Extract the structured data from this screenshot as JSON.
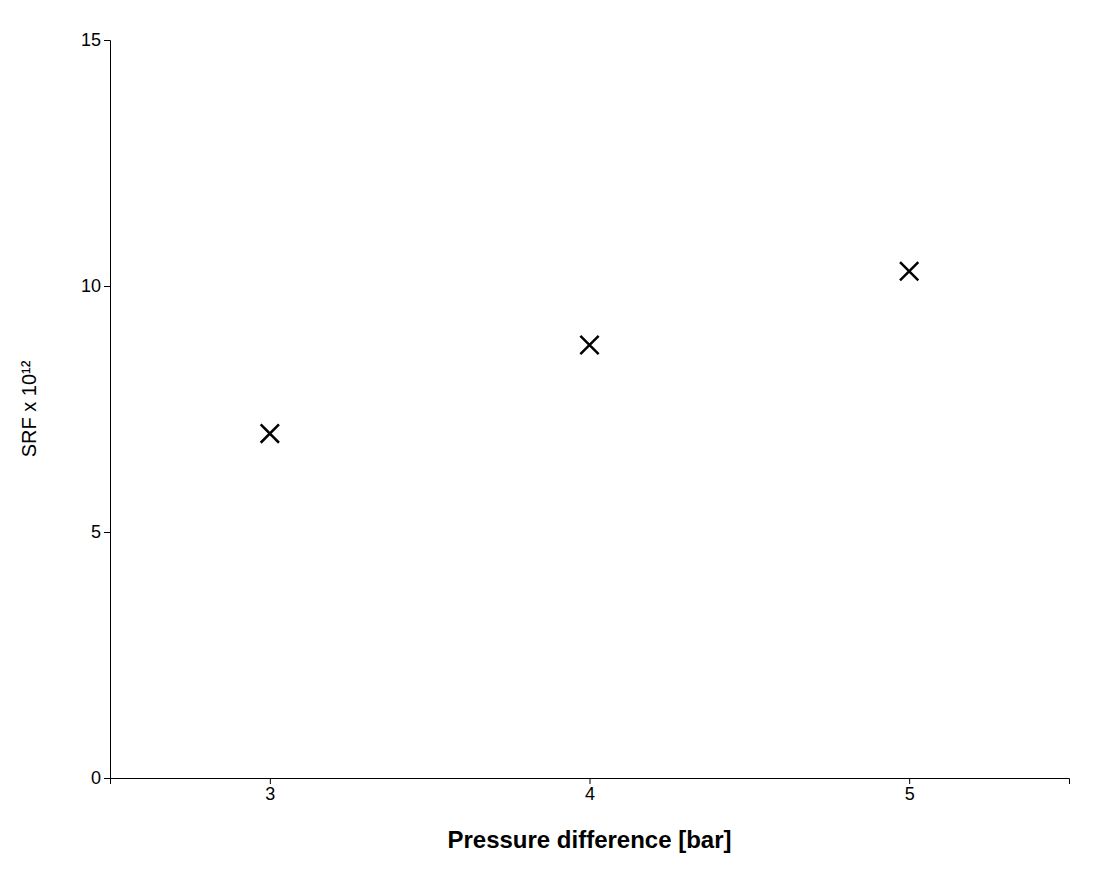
{
  "chart_data": {
    "type": "scatter",
    "x": [
      3,
      4,
      5
    ],
    "values": [
      7.0,
      8.8,
      10.3
    ],
    "xlabel": "Pressure difference [bar]",
    "ylabel": "SRF x 10¹²",
    "xlim": [
      2.5,
      5.5
    ],
    "ylim": [
      0,
      15
    ],
    "xticks": [
      3,
      4,
      5
    ],
    "yticks": [
      0,
      5,
      10,
      15
    ],
    "color": "#000000",
    "marker": "x",
    "grid": false
  }
}
